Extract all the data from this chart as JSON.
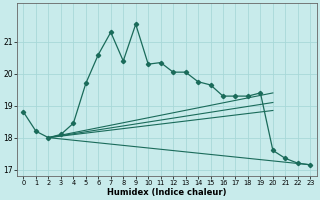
{
  "xlabel": "Humidex (Indice chaleur)",
  "background_color": "#c8ebeb",
  "grid_color": "#a8d8d8",
  "line_color": "#1a6b5a",
  "xlim": [
    -0.5,
    23.5
  ],
  "ylim": [
    16.8,
    22.2
  ],
  "yticks": [
    17,
    18,
    19,
    20,
    21
  ],
  "xticks": [
    0,
    1,
    2,
    3,
    4,
    5,
    6,
    7,
    8,
    9,
    10,
    11,
    12,
    13,
    14,
    15,
    16,
    17,
    18,
    19,
    20,
    21,
    22,
    23
  ],
  "curve1_x": [
    0,
    1,
    2,
    3,
    4,
    5,
    6,
    7,
    8,
    9,
    10,
    11,
    12,
    13,
    14,
    15,
    16,
    17,
    18,
    19,
    20,
    21,
    22,
    23
  ],
  "curve1_y": [
    18.8,
    18.2,
    18.0,
    18.1,
    18.45,
    19.7,
    20.6,
    21.3,
    20.4,
    21.55,
    20.3,
    20.35,
    20.05,
    20.05,
    19.75,
    19.65,
    19.3,
    19.3,
    19.3,
    19.4,
    17.6,
    17.35,
    17.2,
    17.15
  ],
  "line1_x": [
    2,
    20
  ],
  "line1_y": [
    18.0,
    19.4
  ],
  "line2_x": [
    2,
    23
  ],
  "line2_y": [
    18.0,
    17.15
  ],
  "line3_x": [
    2,
    20
  ],
  "line3_y": [
    18.0,
    19.1
  ],
  "line4_x": [
    2,
    20
  ],
  "line4_y": [
    18.0,
    18.85
  ]
}
